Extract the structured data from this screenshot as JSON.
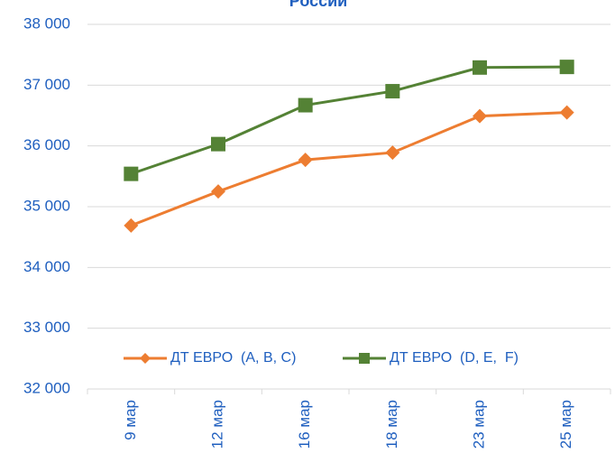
{
  "chart_data": {
    "type": "line",
    "title": "России",
    "categories": [
      "9 мар",
      "12 мар",
      "16 мар",
      "18 мар",
      "23 мар",
      "25 мар"
    ],
    "series": [
      {
        "name": "ДТ ЕВРО  (A, B, C)",
        "color": "#ed7d31",
        "marker": "diamond",
        "values": [
          34690,
          35250,
          35770,
          35890,
          36490,
          36550
        ]
      },
      {
        "name": "ДТ ЕВРО  (D, E,  F)",
        "color": "#548235",
        "marker": "square",
        "values": [
          35540,
          36030,
          36670,
          36900,
          37290,
          37300
        ]
      }
    ],
    "ylim": [
      32000,
      38000
    ],
    "yticks": [
      {
        "value": 32000,
        "label": "32 000"
      },
      {
        "value": 33000,
        "label": "33 000"
      },
      {
        "value": 34000,
        "label": "34 000"
      },
      {
        "value": 35000,
        "label": "35 000"
      },
      {
        "value": 36000,
        "label": "36 000"
      },
      {
        "value": 37000,
        "label": "37 000"
      },
      {
        "value": 38000,
        "label": "38 000"
      }
    ],
    "grid": true,
    "legend": "bottom"
  }
}
